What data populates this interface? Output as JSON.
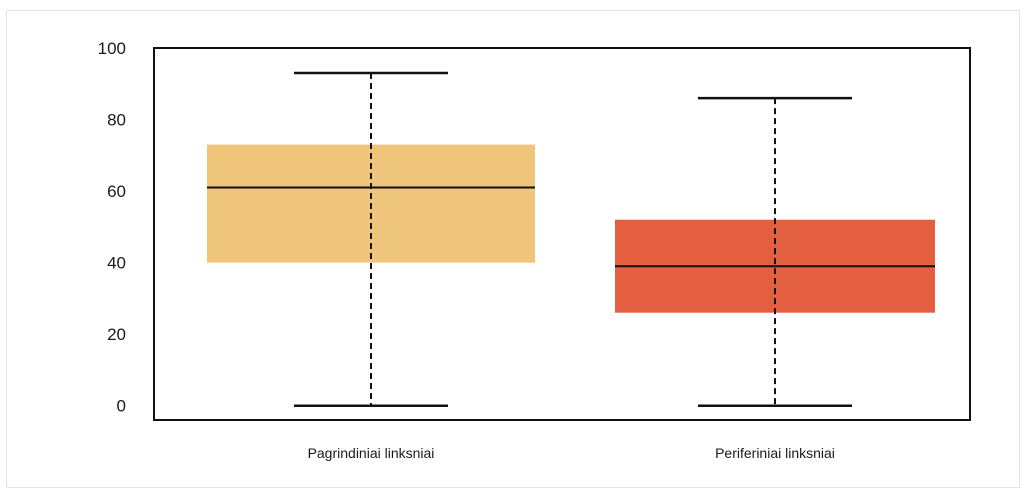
{
  "chart_data": {
    "type": "boxplot",
    "title": "",
    "xlabel": "",
    "ylabel": "",
    "ylim": [
      -4,
      100
    ],
    "yticks": [
      0,
      20,
      40,
      60,
      80,
      100
    ],
    "grid": false,
    "categories": [
      "Pagrindiniai linksniai",
      "Periferiniai linksniai"
    ],
    "boxes": [
      {
        "category": "Pagrindiniai linksniai",
        "min": 0,
        "q1": 40,
        "median": 61,
        "q3": 73,
        "max": 93,
        "color": "#EFC47B"
      },
      {
        "category": "Periferiniai linksniai",
        "min": 0,
        "q1": 26,
        "median": 39,
        "q3": 52,
        "max": 86,
        "color": "#E35F3F"
      }
    ]
  }
}
